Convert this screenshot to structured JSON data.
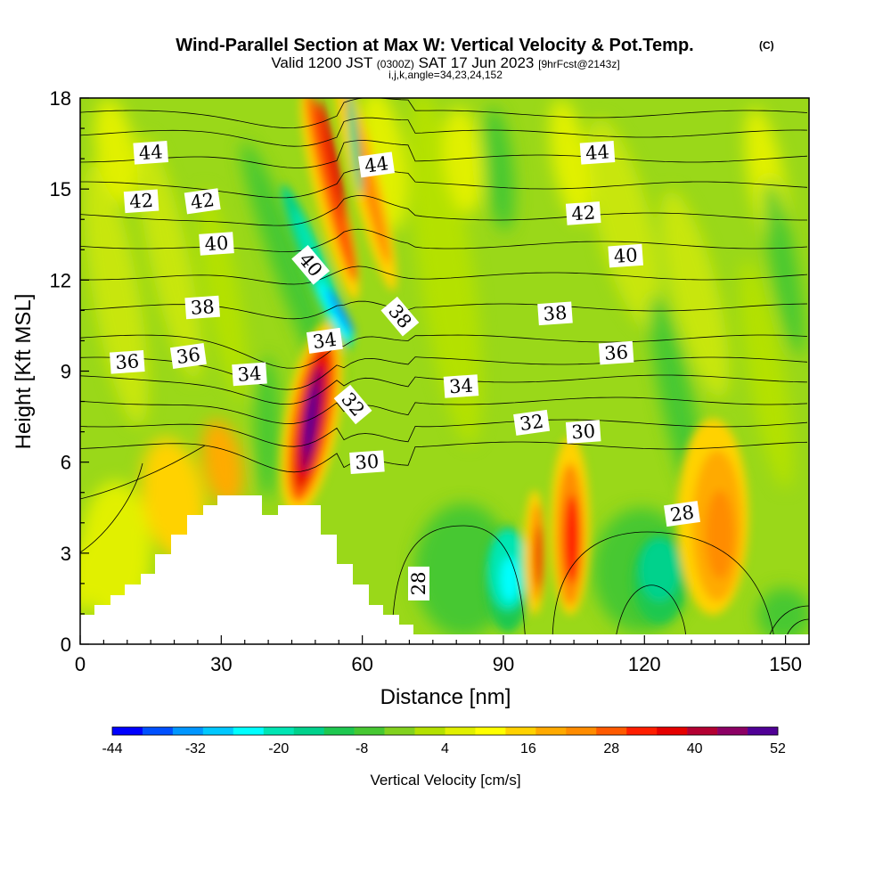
{
  "header": {
    "title": "Wind-Parallel Section at Max W: Vertical Velocity & Pot.Temp.",
    "title_mark": "(C)",
    "valid_prefix": "Valid 1200 JST",
    "valid_zone": "(0300Z)",
    "valid_date": "SAT 17 Jun 2023",
    "valid_fcst": "[9hrFcst@2143z]",
    "ijk": "i,j,k,angle=34,23,24,152"
  },
  "chart_data": {
    "type": "heatmap",
    "xlabel": "Distance [nm]",
    "ylabel": "Height [Kft MSL]",
    "xlim": [
      0,
      155
    ],
    "ylim": [
      0,
      18
    ],
    "xticks": [
      "0",
      "30",
      "60",
      "90",
      "120",
      "150"
    ],
    "yticks": [
      "0",
      "3",
      "6",
      "9",
      "12",
      "15",
      "18"
    ],
    "colorbar": {
      "label": "Vertical Velocity [cm/s]",
      "tick_labels": [
        "-44",
        "-32",
        "-20",
        "-8",
        "4",
        "16",
        "28",
        "40",
        "52"
      ],
      "colors": [
        "#0000ff",
        "#0050ff",
        "#0096ff",
        "#00c8ff",
        "#00ffff",
        "#00e6b4",
        "#00d28c",
        "#1ec850",
        "#46c832",
        "#82d21e",
        "#b4e100",
        "#e1f000",
        "#ffff00",
        "#ffd200",
        "#ffaa00",
        "#ff8c00",
        "#ff5a00",
        "#ff1e00",
        "#e60000",
        "#b40032",
        "#8c0064",
        "#500096"
      ]
    },
    "theta_contour_labels": [
      {
        "value": "44",
        "x": 15,
        "y": 16.2
      },
      {
        "value": "44",
        "x": 63,
        "y": 15.8
      },
      {
        "value": "44",
        "x": 110,
        "y": 16.2
      },
      {
        "value": "42",
        "x": 13,
        "y": 14.6
      },
      {
        "value": "42",
        "x": 26,
        "y": 14.6
      },
      {
        "value": "42",
        "x": 107,
        "y": 14.2
      },
      {
        "value": "40",
        "x": 29,
        "y": 13.2
      },
      {
        "value": "40",
        "x": 49,
        "y": 12.5
      },
      {
        "value": "40",
        "x": 116,
        "y": 12.8
      },
      {
        "value": "38",
        "x": 26,
        "y": 11.1
      },
      {
        "value": "38",
        "x": 68,
        "y": 10.8
      },
      {
        "value": "38",
        "x": 101,
        "y": 10.9
      },
      {
        "value": "36",
        "x": 10,
        "y": 9.3
      },
      {
        "value": "36",
        "x": 23,
        "y": 9.5
      },
      {
        "value": "36",
        "x": 114,
        "y": 9.6
      },
      {
        "value": "34",
        "x": 36,
        "y": 8.9
      },
      {
        "value": "34",
        "x": 52,
        "y": 10.0
      },
      {
        "value": "34",
        "x": 81,
        "y": 8.5
      },
      {
        "value": "32",
        "x": 58,
        "y": 7.9
      },
      {
        "value": "32",
        "x": 96,
        "y": 7.3
      },
      {
        "value": "30",
        "x": 61,
        "y": 6.0
      },
      {
        "value": "30",
        "x": 107,
        "y": 7.0
      },
      {
        "value": "28",
        "x": 128,
        "y": 4.3
      },
      {
        "value": "28",
        "x": 72,
        "y": 2.0
      }
    ]
  }
}
